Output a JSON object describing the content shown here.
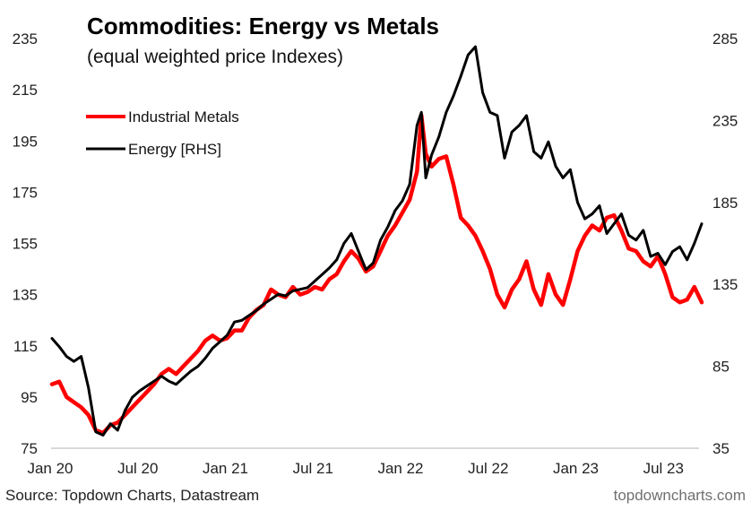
{
  "chart_data": {
    "type": "line",
    "title": "Commodities: Energy vs Metals",
    "subtitle": "(equal weighted price Indexes)",
    "xlabel": "",
    "ylabel": "",
    "y2label": "",
    "x_range": [
      "Jan 20",
      "Sep 23"
    ],
    "x_ticks": [
      "Jan 20",
      "Jul 20",
      "Jan 21",
      "Jul 21",
      "Jan 22",
      "Jul 22",
      "Jan 23",
      "Jul 23"
    ],
    "ylim": [
      75,
      235
    ],
    "y_ticks": [
      75,
      95,
      115,
      135,
      155,
      175,
      195,
      215,
      235
    ],
    "y2lim": [
      35,
      285
    ],
    "y2_ticks": [
      35,
      85,
      135,
      185,
      235,
      285
    ],
    "grid": false,
    "baseline_color": "#d9d9d9",
    "legend": {
      "position": "top-left",
      "entries": [
        {
          "label": "Industrial Metals",
          "color": "#ff0000"
        },
        {
          "label": "Energy [RHS]",
          "color": "#000000"
        }
      ]
    },
    "series": [
      {
        "name": "Industrial Metals",
        "axis": "left",
        "color": "#ff0000",
        "x_months": [
          0,
          0.5,
          1,
          1.5,
          2,
          2.5,
          3,
          3.5,
          4,
          4.5,
          5,
          5.5,
          6,
          6.5,
          7,
          7.5,
          8,
          8.5,
          9,
          9.5,
          10,
          10.5,
          11,
          11.5,
          12,
          12.5,
          13,
          13.5,
          14,
          14.5,
          15,
          15.5,
          16,
          16.5,
          17,
          17.5,
          18,
          18.5,
          19,
          19.5,
          20,
          20.5,
          21,
          21.5,
          22,
          22.5,
          23,
          23.5,
          24,
          24.5,
          25,
          25.3,
          25.6,
          26,
          26.5,
          27,
          27.5,
          28,
          28.5,
          29,
          29.5,
          30,
          30.5,
          31,
          31.5,
          32,
          32.5,
          33,
          33.5,
          34,
          34.5,
          35,
          35.5,
          36,
          36.5,
          37,
          37.5,
          38,
          38.5,
          39,
          39.5,
          40,
          40.5,
          41,
          41.5,
          42,
          42.5,
          43,
          43.5,
          44,
          44.5
        ],
        "values": [
          100,
          101,
          95,
          93,
          91,
          88,
          82,
          81,
          84,
          85,
          88,
          91,
          94,
          97,
          100,
          104,
          106,
          104,
          107,
          110,
          113,
          117,
          119,
          117,
          118,
          121,
          121,
          126,
          129,
          131,
          137,
          135,
          134,
          138,
          135,
          136,
          138,
          137,
          141,
          143,
          148,
          152,
          149,
          144,
          146,
          152,
          158,
          162,
          167,
          172,
          183,
          205,
          190,
          185,
          188,
          189,
          178,
          165,
          162,
          158,
          152,
          145,
          135,
          130,
          137,
          141,
          148,
          137,
          131,
          143,
          135,
          131,
          141,
          152,
          158,
          162,
          160,
          165,
          166,
          160,
          153,
          152,
          148,
          146,
          150,
          143,
          134,
          132,
          133,
          138,
          132,
          134,
          139,
          132,
          135
        ]
      },
      {
        "name": "Energy [RHS]",
        "axis": "right",
        "color": "#000000",
        "x_months": [
          0,
          0.5,
          1,
          1.5,
          2,
          2.5,
          3,
          3.5,
          4,
          4.5,
          5,
          5.5,
          6,
          6.5,
          7,
          7.5,
          8,
          8.5,
          9,
          9.5,
          10,
          10.5,
          11,
          11.5,
          12,
          12.5,
          13,
          13.5,
          14,
          14.5,
          15,
          15.5,
          16,
          16.5,
          17,
          17.5,
          18,
          18.5,
          19,
          19.5,
          20,
          20.5,
          21,
          21.5,
          22,
          22.5,
          23,
          23.5,
          24,
          24.5,
          25,
          25.3,
          25.6,
          26,
          26.5,
          27,
          27.5,
          28,
          28.5,
          29,
          29.5,
          30,
          30.5,
          31,
          31.5,
          32,
          32.5,
          33,
          33.5,
          34,
          34.5,
          35,
          35.5,
          36,
          36.5,
          37,
          37.5,
          38,
          38.5,
          39,
          39.5,
          40,
          40.5,
          41,
          41.5,
          42,
          42.5,
          43,
          43.5,
          44,
          44.5
        ],
        "values": [
          102,
          97,
          91,
          88,
          91,
          72,
          45,
          43,
          50,
          46,
          58,
          66,
          70,
          73,
          76,
          79,
          76,
          74,
          78,
          82,
          85,
          90,
          96,
          100,
          104,
          112,
          113,
          116,
          119,
          123,
          126,
          129,
          128,
          131,
          132,
          133,
          137,
          141,
          145,
          150,
          160,
          166,
          155,
          144,
          148,
          162,
          170,
          180,
          186,
          196,
          232,
          240,
          200,
          214,
          225,
          240,
          250,
          262,
          275,
          280,
          252,
          240,
          238,
          212,
          228,
          232,
          238,
          216,
          212,
          222,
          207,
          200,
          205,
          185,
          175,
          178,
          183,
          166,
          172,
          178,
          165,
          162,
          168,
          152,
          154,
          147,
          155,
          158,
          150,
          160,
          172,
          176,
          178,
          183,
          190
        ]
      }
    ]
  },
  "footer": {
    "source": "Source: Topdown Charts, Datastream",
    "brand": "topdowncharts.com"
  }
}
